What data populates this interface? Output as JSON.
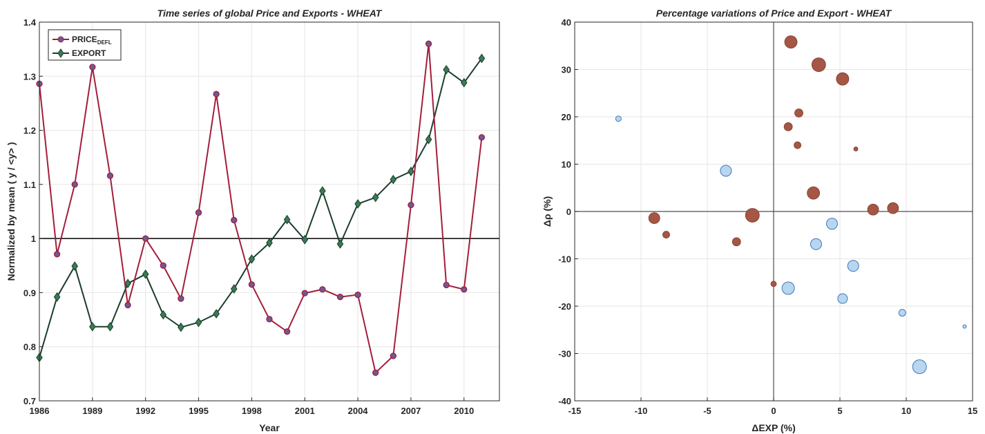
{
  "colors": {
    "price": "#a31d3a",
    "price_marker_fill": "#6b5b95",
    "export": "#1b3d2c",
    "export_marker_fill": "#3a7a55",
    "bubble_positive": "#a55644",
    "bubble_negative": "#b9d6ef",
    "bubble_negative_edge": "#3c78b8",
    "grid": "#e6e6e6",
    "axes": "#262626"
  },
  "chart_data": [
    {
      "type": "line",
      "title": "Time series of global Price and Exports - WHEAT",
      "xlabel": "Year",
      "ylabel": "Normalized by mean ( y / <y> )",
      "xlim": [
        1986,
        2012
      ],
      "ylim": [
        0.7,
        1.4
      ],
      "xticks": [
        1986,
        1989,
        1992,
        1995,
        1998,
        2001,
        2004,
        2007,
        2010
      ],
      "yticks": [
        0.7,
        0.8,
        0.9,
        1,
        1.1,
        1.2,
        1.3,
        1.4
      ],
      "ytick_labels": [
        "0.7",
        "0.8",
        "0.9",
        "1",
        "1.1",
        "1.2",
        "1.3",
        "1.4"
      ],
      "reference_line": 1,
      "grid": true,
      "legend": "top-left",
      "x": [
        1986,
        1987,
        1988,
        1989,
        1990,
        1991,
        1992,
        1993,
        1994,
        1995,
        1996,
        1997,
        1998,
        1999,
        2000,
        2001,
        2002,
        2003,
        2004,
        2005,
        2006,
        2007,
        2008,
        2009,
        2010,
        2011
      ],
      "series": [
        {
          "name": "PRICE",
          "name_sub": "DEFL",
          "marker": "circle",
          "values": [
            1.286,
            0.971,
            1.1,
            1.317,
            1.116,
            0.877,
            1.0,
            0.95,
            0.889,
            1.048,
            1.267,
            1.034,
            0.915,
            0.851,
            0.828,
            0.899,
            0.906,
            0.892,
            0.896,
            0.752,
            0.783,
            1.062,
            1.36,
            0.914,
            0.906,
            1.187
          ]
        },
        {
          "name": "EXPORT",
          "marker": "diamond",
          "values": [
            0.78,
            0.892,
            0.949,
            0.837,
            0.837,
            0.917,
            0.934,
            0.859,
            0.836,
            0.845,
            0.861,
            0.907,
            0.962,
            0.992,
            1.035,
            0.998,
            1.088,
            0.99,
            1.064,
            1.076,
            1.109,
            1.124,
            1.183,
            1.312,
            1.288,
            1.333
          ]
        }
      ]
    },
    {
      "type": "scatter",
      "title": "Percentage variations of Price and Export - WHEAT",
      "xlabel": "ΔEXP (%)",
      "ylabel": "Δρ (%)",
      "xlim": [
        -15,
        15
      ],
      "ylim": [
        -40,
        40
      ],
      "xticks": [
        -15,
        -10,
        -5,
        0,
        5,
        10,
        15
      ],
      "yticks": [
        -40,
        -30,
        -20,
        -10,
        0,
        10,
        20,
        30,
        40
      ],
      "grid": true,
      "points": [
        {
          "x": 1.3,
          "y": 35.8,
          "r": 9
        },
        {
          "x": 3.4,
          "y": 31.0,
          "r": 10
        },
        {
          "x": 5.2,
          "y": 28.0,
          "r": 9
        },
        {
          "x": 1.9,
          "y": 20.8,
          "r": 6
        },
        {
          "x": 1.1,
          "y": 17.9,
          "r": 6
        },
        {
          "x": 1.8,
          "y": 14.0,
          "r": 5
        },
        {
          "x": 6.2,
          "y": 13.2,
          "r": 3
        },
        {
          "x": 3.0,
          "y": 3.9,
          "r": 9
        },
        {
          "x": 7.5,
          "y": 0.4,
          "r": 8
        },
        {
          "x": 9.0,
          "y": 0.7,
          "r": 8
        },
        {
          "x": -9.0,
          "y": -1.4,
          "r": 8
        },
        {
          "x": -1.6,
          "y": -0.8,
          "r": 10
        },
        {
          "x": -8.1,
          "y": -4.9,
          "r": 5
        },
        {
          "x": -2.8,
          "y": -6.4,
          "r": 6
        },
        {
          "x": 0.0,
          "y": -15.3,
          "r": 4
        },
        {
          "x": -11.7,
          "y": 19.6,
          "r": 4
        },
        {
          "x": -3.6,
          "y": 8.6,
          "r": 8
        },
        {
          "x": 4.4,
          "y": -2.6,
          "r": 8
        },
        {
          "x": 3.2,
          "y": -6.9,
          "r": 8
        },
        {
          "x": 6.0,
          "y": -11.5,
          "r": 8
        },
        {
          "x": 1.1,
          "y": -16.2,
          "r": 9
        },
        {
          "x": 5.2,
          "y": -18.4,
          "r": 7
        },
        {
          "x": 9.7,
          "y": -21.4,
          "r": 5
        },
        {
          "x": 14.4,
          "y": -24.3,
          "r": 2.5
        },
        {
          "x": 11.0,
          "y": -32.8,
          "r": 10
        }
      ]
    }
  ]
}
